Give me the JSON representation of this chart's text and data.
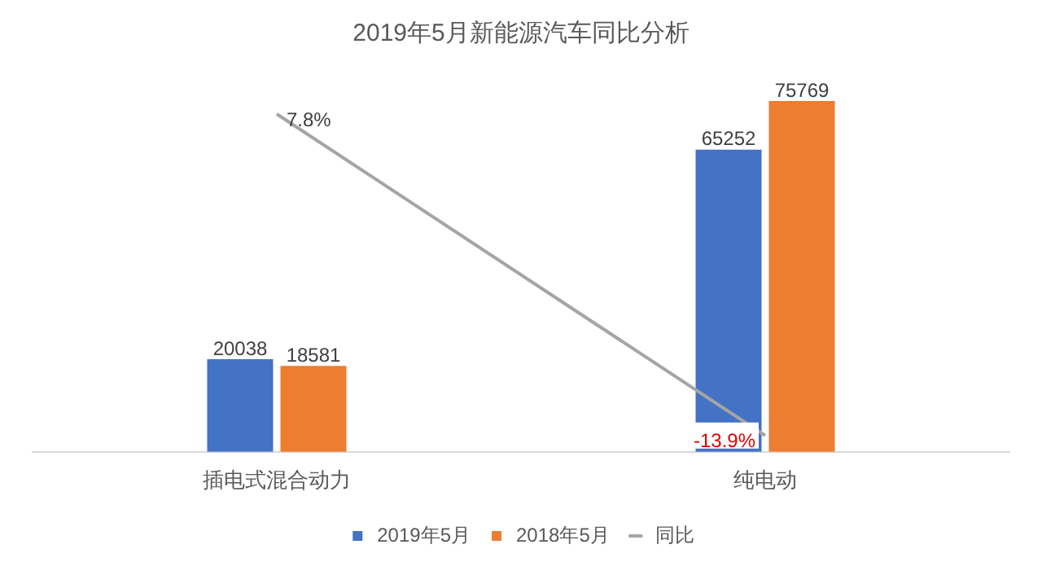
{
  "chart_data": {
    "type": "bar",
    "title": "2019年5月新能源汽车同比分析",
    "categories": [
      "插电式混合动力",
      "纯电动"
    ],
    "series": [
      {
        "name": "2019年5月",
        "color": "#4472c4",
        "values": [
          20038,
          65252
        ]
      },
      {
        "name": "2018年5月",
        "color": "#ed7d31",
        "values": [
          18581,
          75769
        ]
      },
      {
        "name": "同比",
        "type": "line",
        "axis": "y2",
        "color": "#a5a5a5",
        "values": [
          7.8,
          -13.9
        ],
        "value_labels": [
          "7.8%",
          "-13.9%"
        ]
      }
    ],
    "data_labels": true,
    "legend": "bottom",
    "grid": false,
    "tick_labels": "x"
  }
}
